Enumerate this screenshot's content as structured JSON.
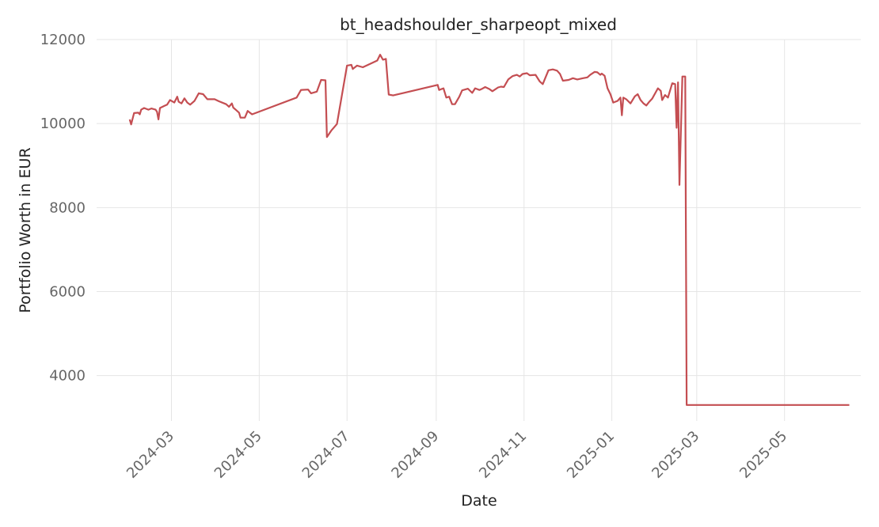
{
  "chart_data": {
    "type": "line",
    "title": "bt_headshoulder_sharpeopt_mixed",
    "xlabel": "Date",
    "ylabel": "Portfolio Worth in EUR",
    "xlim": [
      "2024-01-09",
      "2025-06-23"
    ],
    "ylim": [
      2920,
      12000
    ],
    "y_ticks": [
      4000,
      6000,
      8000,
      10000,
      12000
    ],
    "x_ticks": [
      "2024-03",
      "2024-05",
      "2024-07",
      "2024-09",
      "2024-11",
      "2025-01",
      "2025-03",
      "2025-05"
    ],
    "grid": true,
    "line_color": "#c44e52",
    "series": [
      {
        "points": [
          [
            "2024-02-01",
            10100
          ],
          [
            "2024-02-02",
            9980
          ],
          [
            "2024-02-04",
            10250
          ],
          [
            "2024-02-07",
            10260
          ],
          [
            "2024-02-08",
            10220
          ],
          [
            "2024-02-09",
            10330
          ],
          [
            "2024-02-11",
            10370
          ],
          [
            "2024-02-14",
            10330
          ],
          [
            "2024-02-16",
            10360
          ],
          [
            "2024-02-19",
            10330
          ],
          [
            "2024-02-20",
            10280
          ],
          [
            "2024-02-21",
            10100
          ],
          [
            "2024-02-22",
            10370
          ],
          [
            "2024-02-25",
            10420
          ],
          [
            "2024-02-27",
            10450
          ],
          [
            "2024-02-29",
            10560
          ],
          [
            "2024-03-03",
            10500
          ],
          [
            "2024-03-05",
            10640
          ],
          [
            "2024-03-06",
            10520
          ],
          [
            "2024-03-08",
            10480
          ],
          [
            "2024-03-10",
            10600
          ],
          [
            "2024-03-12",
            10500
          ],
          [
            "2024-03-14",
            10450
          ],
          [
            "2024-03-17",
            10540
          ],
          [
            "2024-03-20",
            10720
          ],
          [
            "2024-03-23",
            10700
          ],
          [
            "2024-03-26",
            10580
          ],
          [
            "2024-03-31",
            10580
          ],
          [
            "2024-04-03",
            10530
          ],
          [
            "2024-04-08",
            10460
          ],
          [
            "2024-04-10",
            10400
          ],
          [
            "2024-04-12",
            10480
          ],
          [
            "2024-04-13",
            10380
          ],
          [
            "2024-04-15",
            10320
          ],
          [
            "2024-04-17",
            10260
          ],
          [
            "2024-04-18",
            10140
          ],
          [
            "2024-04-21",
            10140
          ],
          [
            "2024-04-23",
            10300
          ],
          [
            "2024-04-26",
            10220
          ],
          [
            "2024-05-27",
            10620
          ],
          [
            "2024-05-30",
            10800
          ],
          [
            "2024-06-04",
            10810
          ],
          [
            "2024-06-06",
            10720
          ],
          [
            "2024-06-10",
            10760
          ],
          [
            "2024-06-13",
            11040
          ],
          [
            "2024-06-16",
            11030
          ],
          [
            "2024-06-17",
            9680
          ],
          [
            "2024-06-20",
            9830
          ],
          [
            "2024-06-24",
            9990
          ],
          [
            "2024-07-01",
            11380
          ],
          [
            "2024-07-04",
            11400
          ],
          [
            "2024-07-05",
            11300
          ],
          [
            "2024-07-08",
            11380
          ],
          [
            "2024-07-12",
            11340
          ],
          [
            "2024-07-17",
            11420
          ],
          [
            "2024-07-22",
            11500
          ],
          [
            "2024-07-24",
            11640
          ],
          [
            "2024-07-26",
            11520
          ],
          [
            "2024-07-28",
            11540
          ],
          [
            "2024-07-30",
            10690
          ],
          [
            "2024-08-02",
            10670
          ],
          [
            "2024-09-02",
            10920
          ],
          [
            "2024-09-03",
            10800
          ],
          [
            "2024-09-06",
            10840
          ],
          [
            "2024-09-08",
            10620
          ],
          [
            "2024-09-10",
            10640
          ],
          [
            "2024-09-12",
            10460
          ],
          [
            "2024-09-14",
            10460
          ],
          [
            "2024-09-17",
            10640
          ],
          [
            "2024-09-19",
            10790
          ],
          [
            "2024-09-23",
            10830
          ],
          [
            "2024-09-26",
            10730
          ],
          [
            "2024-09-28",
            10840
          ],
          [
            "2024-10-01",
            10800
          ],
          [
            "2024-10-03",
            10830
          ],
          [
            "2024-10-05",
            10870
          ],
          [
            "2024-10-08",
            10820
          ],
          [
            "2024-10-10",
            10770
          ],
          [
            "2024-10-14",
            10860
          ],
          [
            "2024-10-16",
            10880
          ],
          [
            "2024-10-18",
            10870
          ],
          [
            "2024-10-21",
            11050
          ],
          [
            "2024-10-24",
            11130
          ],
          [
            "2024-10-27",
            11160
          ],
          [
            "2024-10-29",
            11120
          ],
          [
            "2024-10-31",
            11180
          ],
          [
            "2024-11-03",
            11200
          ],
          [
            "2024-11-05",
            11150
          ],
          [
            "2024-11-09",
            11160
          ],
          [
            "2024-11-12",
            11000
          ],
          [
            "2024-11-14",
            10940
          ],
          [
            "2024-11-18",
            11270
          ],
          [
            "2024-11-21",
            11290
          ],
          [
            "2024-11-24",
            11260
          ],
          [
            "2024-11-26",
            11180
          ],
          [
            "2024-11-28",
            11020
          ],
          [
            "2024-12-02",
            11040
          ],
          [
            "2024-12-05",
            11080
          ],
          [
            "2024-12-08",
            11050
          ],
          [
            "2024-12-12",
            11080
          ],
          [
            "2024-12-15",
            11100
          ],
          [
            "2024-12-17",
            11160
          ],
          [
            "2024-12-20",
            11230
          ],
          [
            "2024-12-22",
            11220
          ],
          [
            "2024-12-24",
            11160
          ],
          [
            "2024-12-25",
            11190
          ],
          [
            "2024-12-27",
            11140
          ],
          [
            "2024-12-29",
            10840
          ],
          [
            "2024-12-31",
            10700
          ],
          [
            "2025-01-02",
            10500
          ],
          [
            "2025-01-05",
            10540
          ],
          [
            "2025-01-07",
            10620
          ],
          [
            "2025-01-08",
            10200
          ],
          [
            "2025-01-09",
            10620
          ],
          [
            "2025-01-11",
            10580
          ],
          [
            "2025-01-14",
            10480
          ],
          [
            "2025-01-17",
            10650
          ],
          [
            "2025-01-19",
            10700
          ],
          [
            "2025-01-21",
            10560
          ],
          [
            "2025-01-23",
            10480
          ],
          [
            "2025-01-25",
            10430
          ],
          [
            "2025-01-27",
            10520
          ],
          [
            "2025-01-29",
            10590
          ],
          [
            "2025-02-02",
            10840
          ],
          [
            "2025-02-04",
            10780
          ],
          [
            "2025-02-05",
            10560
          ],
          [
            "2025-02-07",
            10680
          ],
          [
            "2025-02-09",
            10620
          ],
          [
            "2025-02-12",
            10960
          ],
          [
            "2025-02-14",
            10940
          ],
          [
            "2025-02-15",
            9900
          ],
          [
            "2025-02-16",
            10980
          ],
          [
            "2025-02-17",
            8540
          ],
          [
            "2025-02-19",
            11120
          ],
          [
            "2025-02-21",
            11120
          ],
          [
            "2025-02-22",
            3300
          ],
          [
            "2025-06-15",
            3300
          ]
        ]
      }
    ]
  }
}
